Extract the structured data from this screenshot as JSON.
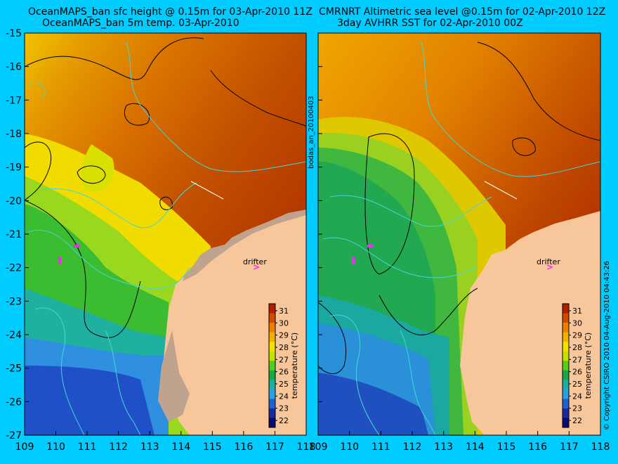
{
  "panels": [
    {
      "title_line1": "OceanMAPS_ban sfc height @ 0.15m for 03-Apr-2010 11Z",
      "title_line2": "OceanMAPS_ban 5m temp. 03-Apr-2010"
    },
    {
      "title_line1": "CMRNRT Altimetric sea level  @0.15m  for 02-Apr-2010 12Z",
      "title_line2": "3day AVHRR SST for 02-Apr-2010 00Z"
    }
  ],
  "side_label": "bodas_an_20100403",
  "copyright": "© Copyright CSIRO 2010  04-Aug-2010 04:43:26",
  "drifter_label": "drifter",
  "axes": {
    "lat_ticks": [
      "-15",
      "-16",
      "-17",
      "-18",
      "-19",
      "-20",
      "-21",
      "-22",
      "-23",
      "-24",
      "-25",
      "-26",
      "-27"
    ],
    "lon_ticks": [
      "109",
      "110",
      "111",
      "112",
      "113",
      "114",
      "115",
      "116",
      "117",
      "118"
    ]
  },
  "colorbar": {
    "title": "temperature (°C)",
    "ticks": [
      "31",
      "30",
      "29",
      "28",
      "27",
      "26",
      "25",
      "24",
      "23",
      "22"
    ],
    "colors": [
      "#b02000",
      "#d24a00",
      "#e98000",
      "#f4b000",
      "#f2e000",
      "#c6e000",
      "#55cc20",
      "#18a848",
      "#1ab0a0",
      "#2aa0e0",
      "#2060d0",
      "#1a2aa0",
      "#0a0a70"
    ]
  },
  "map_colors": {
    "land": "#f7c69a",
    "coast_shade": "#bfa38e",
    "bathy_contour": "#40d8d8",
    "sea_level_contour": "#000000",
    "drifter": "#ff22ff"
  }
}
